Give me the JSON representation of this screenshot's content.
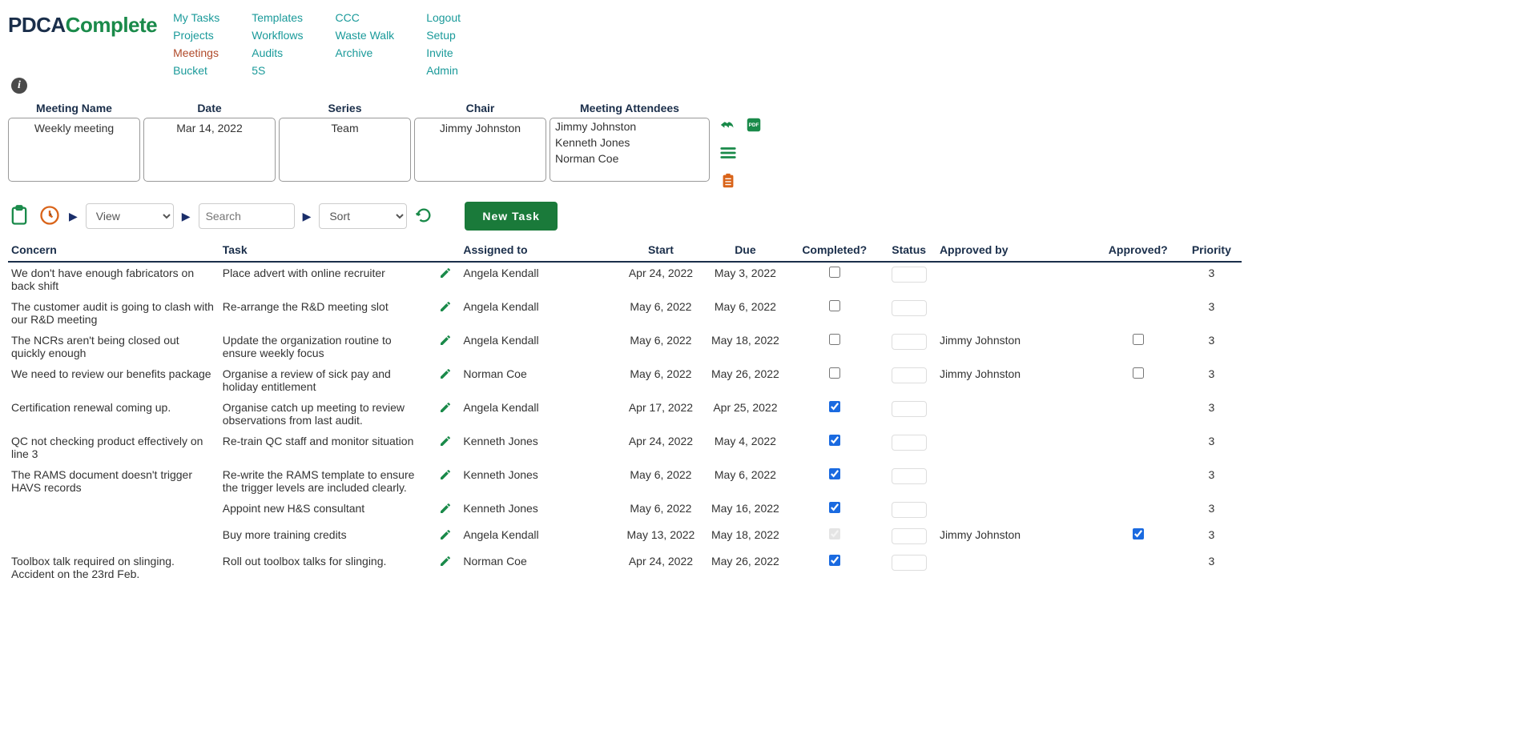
{
  "logo": {
    "part1": "PDCA",
    "part2": "Complete"
  },
  "nav": {
    "col1": [
      "My Tasks",
      "Projects",
      "Meetings",
      "Bucket"
    ],
    "col2": [
      "Templates",
      "Workflows",
      "Audits",
      "5S"
    ],
    "col3": [
      "CCC",
      "Waste Walk",
      "Archive"
    ],
    "col4": [
      "Logout",
      "Setup",
      "Invite",
      "Admin"
    ],
    "active": "Meetings"
  },
  "meeting": {
    "labels": {
      "name": "Meeting Name",
      "date": "Date",
      "series": "Series",
      "chair": "Chair",
      "attendees": "Meeting Attendees"
    },
    "name": "Weekly meeting",
    "date": "Mar 14, 2022",
    "series": "Team",
    "chair": "Jimmy Johnston",
    "attendees": [
      "Jimmy Johnston",
      "Kenneth Jones",
      "Norman Coe"
    ],
    "widths": {
      "name": 165,
      "date": 165,
      "series": 165,
      "chair": 165,
      "attendees": 200
    }
  },
  "toolbar": {
    "view_placeholder": "View",
    "search_placeholder": "Search",
    "sort_placeholder": "Sort",
    "new_task_label": "New Task"
  },
  "columns": {
    "concern": "Concern",
    "task": "Task",
    "assigned": "Assigned to",
    "start": "Start",
    "due": "Due",
    "completed": "Completed?",
    "status": "Status",
    "approved_by": "Approved by",
    "approved": "Approved?",
    "priority": "Priority"
  },
  "rows": [
    {
      "concern": "We don't have enough fabricators on back shift",
      "task": "Place advert with online recruiter",
      "assigned": "Angela Kendall",
      "start": "Apr 24, 2022",
      "due": "May 3, 2022",
      "completed": false,
      "approved_by": "",
      "approved": null,
      "priority": "3"
    },
    {
      "concern": "The customer audit is going to clash with our R&D meeting",
      "task": "Re-arrange the R&D meeting slot",
      "assigned": "Angela Kendall",
      "start": "May 6, 2022",
      "due": "May 6, 2022",
      "completed": false,
      "approved_by": "",
      "approved": null,
      "priority": "3"
    },
    {
      "concern": "The NCRs aren't being closed out quickly enough",
      "task": "Update the organization routine to ensure weekly focus",
      "assigned": "Angela Kendall",
      "start": "May 6, 2022",
      "due": "May 18, 2022",
      "completed": false,
      "approved_by": "Jimmy Johnston",
      "approved": false,
      "priority": "3"
    },
    {
      "concern": "We need to review our benefits package",
      "task": "Organise a review of sick pay and holiday entitlement",
      "assigned": "Norman Coe",
      "start": "May 6, 2022",
      "due": "May 26, 2022",
      "completed": false,
      "approved_by": "Jimmy Johnston",
      "approved": false,
      "priority": "3"
    },
    {
      "concern": "Certification renewal coming up.",
      "task": "Organise catch up meeting to review observations from last audit.",
      "assigned": "Angela Kendall",
      "start": "Apr 17, 2022",
      "due": "Apr 25, 2022",
      "completed": true,
      "approved_by": "",
      "approved": null,
      "priority": "3"
    },
    {
      "concern": "QC not checking product effectively on line 3",
      "task": "Re-train QC staff and monitor situation",
      "assigned": "Kenneth Jones",
      "start": "Apr 24, 2022",
      "due": "May 4, 2022",
      "completed": true,
      "approved_by": "",
      "approved": null,
      "priority": "3"
    },
    {
      "concern": "The RAMS document doesn't trigger HAVS records",
      "task": "Re-write the RAMS template to ensure the trigger levels are included clearly.",
      "assigned": "Kenneth Jones",
      "start": "May 6, 2022",
      "due": "May 6, 2022",
      "completed": true,
      "approved_by": "",
      "approved": null,
      "priority": "3"
    },
    {
      "concern": "",
      "task": "Appoint new H&S consultant",
      "assigned": "Kenneth Jones",
      "start": "May 6, 2022",
      "due": "May 16, 2022",
      "completed": true,
      "approved_by": "",
      "approved": null,
      "priority": "3"
    },
    {
      "concern": "",
      "task": "Buy more training credits",
      "assigned": "Angela Kendall",
      "start": "May 13, 2022",
      "due": "May 18, 2022",
      "completed": true,
      "completed_disabled": true,
      "approved_by": "Jimmy Johnston",
      "approved": true,
      "priority": "3"
    },
    {
      "concern": "Toolbox talk required on slinging. Accident on the 23rd Feb.",
      "task": "Roll out toolbox talks for slinging.",
      "assigned": "Norman Coe",
      "start": "Apr 24, 2022",
      "due": "May 26, 2022",
      "completed": true,
      "approved_by": "",
      "approved": null,
      "priority": "3"
    }
  ],
  "colors": {
    "brand_dark": "#1a2e4a",
    "brand_green": "#1a8a4a",
    "nav_teal": "#1a9a9a",
    "nav_active": "#b04a2a",
    "btn_green": "#1a7a3a",
    "orange": "#d9641a"
  }
}
